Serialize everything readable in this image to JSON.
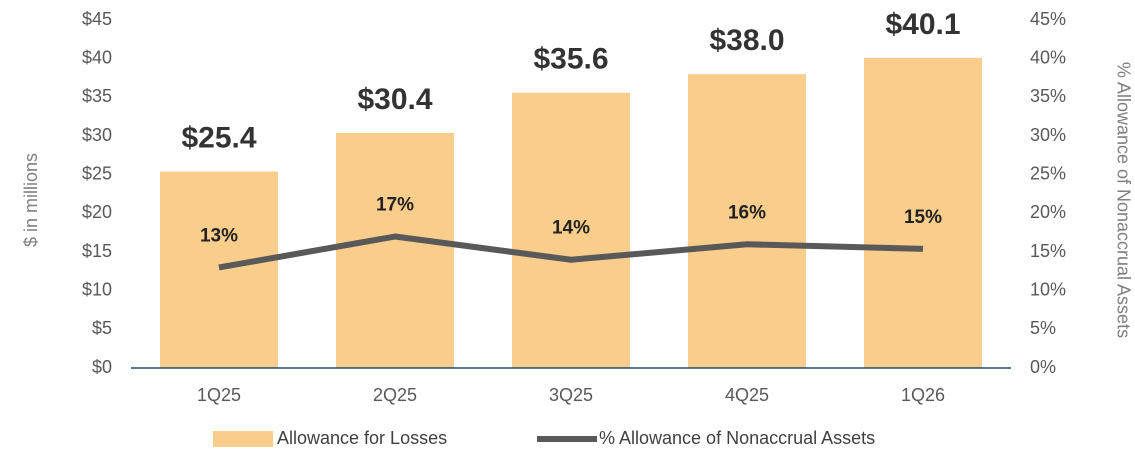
{
  "chart_data": {
    "type": "bar",
    "categories": [
      "1Q25",
      "2Q25",
      "3Q25",
      "4Q25",
      "1Q26"
    ],
    "series": [
      {
        "name": "Allowance for Losses",
        "type": "bar",
        "color": "#f9cd8c",
        "values": [
          25.4,
          30.4,
          35.6,
          38.0,
          40.1
        ],
        "value_labels": [
          "$25.4",
          "$30.4",
          "$35.6",
          "$38.0",
          "$40.1"
        ]
      },
      {
        "name": "% Allowance of Nonaccrual Assets",
        "type": "line",
        "axis": "y2",
        "color": "#595959",
        "values": [
          13,
          17,
          14,
          16,
          15.4
        ],
        "value_labels": [
          "13%",
          "17%",
          "14%",
          "16%",
          "15%"
        ]
      }
    ],
    "ylabel": "$ in millions",
    "y2label": "% Allowance of Nonaccrual Assets",
    "ylim": [
      0,
      45
    ],
    "yticks": [
      {
        "value": 0,
        "label": "$0"
      },
      {
        "value": 5,
        "label": "$5"
      },
      {
        "value": 10,
        "label": "$10"
      },
      {
        "value": 15,
        "label": "$15"
      },
      {
        "value": 20,
        "label": "$20"
      },
      {
        "value": 25,
        "label": "$25"
      },
      {
        "value": 30,
        "label": "$30"
      },
      {
        "value": 35,
        "label": "$35"
      },
      {
        "value": 40,
        "label": "$40"
      },
      {
        "value": 45,
        "label": "$45"
      }
    ],
    "y2lim": [
      0,
      45
    ],
    "y2ticks": [
      {
        "value": 0,
        "label": "0%"
      },
      {
        "value": 5,
        "label": "5%"
      },
      {
        "value": 10,
        "label": "10%"
      },
      {
        "value": 15,
        "label": "15%"
      },
      {
        "value": 20,
        "label": "20%"
      },
      {
        "value": 25,
        "label": "25%"
      },
      {
        "value": 30,
        "label": "30%"
      },
      {
        "value": 35,
        "label": "35%"
      },
      {
        "value": 40,
        "label": "40%"
      },
      {
        "value": 45,
        "label": "45%"
      }
    ],
    "legend": "bottom"
  }
}
